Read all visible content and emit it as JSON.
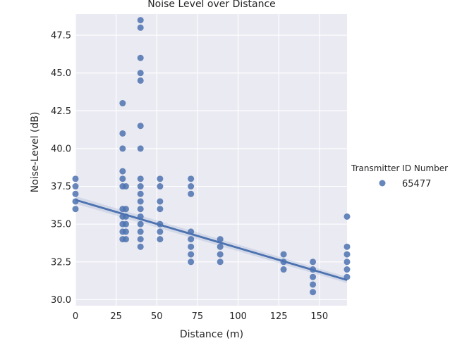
{
  "chart_data": {
    "type": "scatter",
    "title": "Noise Level over Distance",
    "xlabel": "Distance (m)",
    "ylabel": "Noise-Level (dB)",
    "xlim": [
      0,
      167
    ],
    "ylim": [
      29.6,
      48.9
    ],
    "xticks": [
      0,
      25,
      50,
      75,
      100,
      125,
      150
    ],
    "xtick_labels": [
      "0",
      "25",
      "50",
      "75",
      "100",
      "125",
      "150"
    ],
    "yticks": [
      30.0,
      32.5,
      35.0,
      37.5,
      40.0,
      42.5,
      45.0,
      47.5
    ],
    "ytick_labels": [
      "30.0",
      "32.5",
      "35.0",
      "37.5",
      "40.0",
      "42.5",
      "45.0",
      "47.5"
    ],
    "grid": true,
    "legend": {
      "title": "Transmitter ID Number",
      "placement": "right",
      "entries": [
        {
          "label": "65477",
          "color": "#4c72b0"
        }
      ]
    },
    "series": [
      {
        "name": "65477",
        "color": "#4c72b0",
        "points": [
          [
            0,
            38.0
          ],
          [
            0,
            37.5
          ],
          [
            0,
            37.0
          ],
          [
            0,
            36.5
          ],
          [
            0,
            36.0
          ],
          [
            29,
            43.0
          ],
          [
            29,
            41.0
          ],
          [
            29,
            40.0
          ],
          [
            29,
            38.5
          ],
          [
            29,
            38.0
          ],
          [
            29,
            37.5
          ],
          [
            29,
            36.0
          ],
          [
            29,
            35.5
          ],
          [
            29,
            35.0
          ],
          [
            29,
            34.5
          ],
          [
            29,
            34.0
          ],
          [
            31,
            37.5
          ],
          [
            31,
            36.0
          ],
          [
            31,
            35.5
          ],
          [
            31,
            35.0
          ],
          [
            31,
            34.5
          ],
          [
            31,
            34.0
          ],
          [
            40,
            48.5
          ],
          [
            40,
            48.0
          ],
          [
            40,
            46.0
          ],
          [
            40,
            45.0
          ],
          [
            40,
            44.5
          ],
          [
            40,
            41.5
          ],
          [
            40,
            40.0
          ],
          [
            40,
            38.0
          ],
          [
            40,
            37.5
          ],
          [
            40,
            37.0
          ],
          [
            40,
            36.5
          ],
          [
            40,
            36.0
          ],
          [
            40,
            35.5
          ],
          [
            40,
            35.0
          ],
          [
            40,
            34.5
          ],
          [
            40,
            34.0
          ],
          [
            40,
            33.5
          ],
          [
            52,
            38.0
          ],
          [
            52,
            37.5
          ],
          [
            52,
            36.5
          ],
          [
            52,
            36.0
          ],
          [
            52,
            35.0
          ],
          [
            52,
            34.5
          ],
          [
            52,
            34.0
          ],
          [
            71,
            38.0
          ],
          [
            71,
            37.5
          ],
          [
            71,
            37.0
          ],
          [
            71,
            34.5
          ],
          [
            71,
            34.0
          ],
          [
            71,
            33.5
          ],
          [
            71,
            33.0
          ],
          [
            71,
            32.5
          ],
          [
            89,
            34.0
          ],
          [
            89,
            33.5
          ],
          [
            89,
            33.0
          ],
          [
            89,
            32.5
          ],
          [
            128,
            33.0
          ],
          [
            128,
            32.5
          ],
          [
            128,
            32.0
          ],
          [
            146,
            32.5
          ],
          [
            146,
            32.0
          ],
          [
            146,
            31.5
          ],
          [
            146,
            31.0
          ],
          [
            146,
            30.5
          ],
          [
            167,
            35.5
          ],
          [
            167,
            33.5
          ],
          [
            167,
            33.0
          ],
          [
            167,
            32.5
          ],
          [
            167,
            32.0
          ],
          [
            167,
            31.5
          ]
        ]
      }
    ],
    "regression": {
      "x": [
        0,
        167
      ],
      "y": [
        36.6,
        31.3
      ],
      "ci_upper": [
        36.85,
        31.5
      ],
      "ci_lower": [
        36.35,
        31.1
      ]
    }
  }
}
